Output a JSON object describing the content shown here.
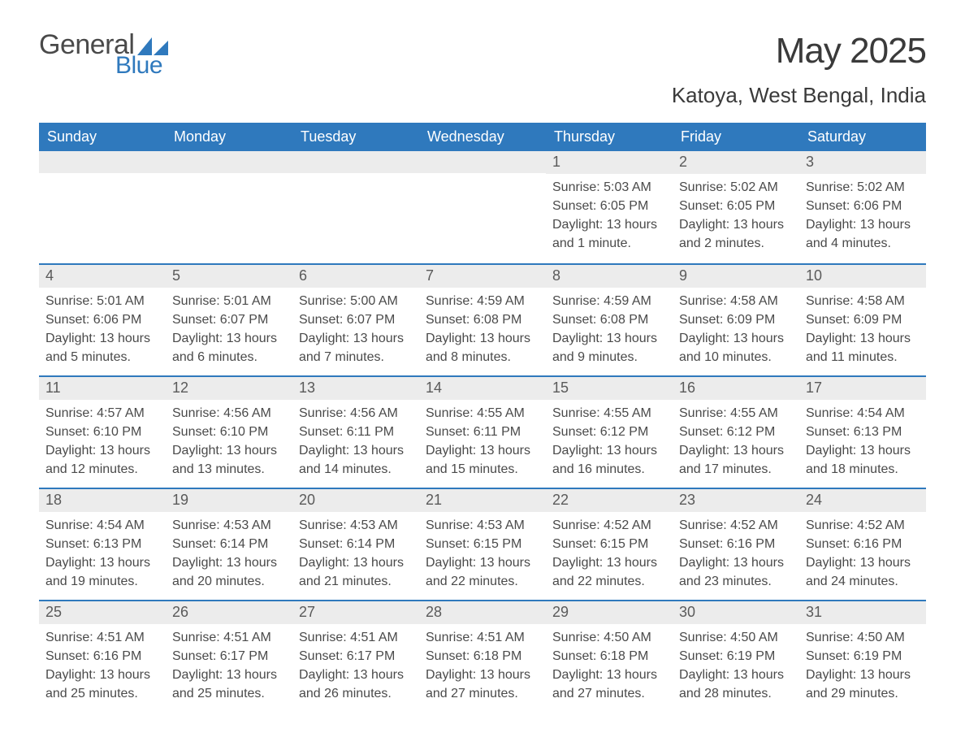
{
  "logo": {
    "text1": "General",
    "text2": "Blue",
    "shape_color": "#2f79bd"
  },
  "title": "May 2025",
  "location": "Katoya, West Bengal, India",
  "colors": {
    "header_bg": "#2f79bd",
    "header_text": "#ffffff",
    "daynum_bg": "#ececec",
    "daynum_text": "#5a5a5a",
    "body_text": "#4a4a4a",
    "rule": "#2f79bd",
    "page_bg": "#ffffff"
  },
  "typography": {
    "title_fontsize": 44,
    "location_fontsize": 26,
    "header_fontsize": 18,
    "daynum_fontsize": 18,
    "body_fontsize": 16,
    "font_family": "Arial"
  },
  "day_headers": [
    "Sunday",
    "Monday",
    "Tuesday",
    "Wednesday",
    "Thursday",
    "Friday",
    "Saturday"
  ],
  "weeks": [
    [
      {
        "blank": true
      },
      {
        "blank": true
      },
      {
        "blank": true
      },
      {
        "blank": true
      },
      {
        "n": "1",
        "sunrise": "Sunrise: 5:03 AM",
        "sunset": "Sunset: 6:05 PM",
        "day1": "Daylight: 13 hours",
        "day2": "and 1 minute."
      },
      {
        "n": "2",
        "sunrise": "Sunrise: 5:02 AM",
        "sunset": "Sunset: 6:05 PM",
        "day1": "Daylight: 13 hours",
        "day2": "and 2 minutes."
      },
      {
        "n": "3",
        "sunrise": "Sunrise: 5:02 AM",
        "sunset": "Sunset: 6:06 PM",
        "day1": "Daylight: 13 hours",
        "day2": "and 4 minutes."
      }
    ],
    [
      {
        "n": "4",
        "sunrise": "Sunrise: 5:01 AM",
        "sunset": "Sunset: 6:06 PM",
        "day1": "Daylight: 13 hours",
        "day2": "and 5 minutes."
      },
      {
        "n": "5",
        "sunrise": "Sunrise: 5:01 AM",
        "sunset": "Sunset: 6:07 PM",
        "day1": "Daylight: 13 hours",
        "day2": "and 6 minutes."
      },
      {
        "n": "6",
        "sunrise": "Sunrise: 5:00 AM",
        "sunset": "Sunset: 6:07 PM",
        "day1": "Daylight: 13 hours",
        "day2": "and 7 minutes."
      },
      {
        "n": "7",
        "sunrise": "Sunrise: 4:59 AM",
        "sunset": "Sunset: 6:08 PM",
        "day1": "Daylight: 13 hours",
        "day2": "and 8 minutes."
      },
      {
        "n": "8",
        "sunrise": "Sunrise: 4:59 AM",
        "sunset": "Sunset: 6:08 PM",
        "day1": "Daylight: 13 hours",
        "day2": "and 9 minutes."
      },
      {
        "n": "9",
        "sunrise": "Sunrise: 4:58 AM",
        "sunset": "Sunset: 6:09 PM",
        "day1": "Daylight: 13 hours",
        "day2": "and 10 minutes."
      },
      {
        "n": "10",
        "sunrise": "Sunrise: 4:58 AM",
        "sunset": "Sunset: 6:09 PM",
        "day1": "Daylight: 13 hours",
        "day2": "and 11 minutes."
      }
    ],
    [
      {
        "n": "11",
        "sunrise": "Sunrise: 4:57 AM",
        "sunset": "Sunset: 6:10 PM",
        "day1": "Daylight: 13 hours",
        "day2": "and 12 minutes."
      },
      {
        "n": "12",
        "sunrise": "Sunrise: 4:56 AM",
        "sunset": "Sunset: 6:10 PM",
        "day1": "Daylight: 13 hours",
        "day2": "and 13 minutes."
      },
      {
        "n": "13",
        "sunrise": "Sunrise: 4:56 AM",
        "sunset": "Sunset: 6:11 PM",
        "day1": "Daylight: 13 hours",
        "day2": "and 14 minutes."
      },
      {
        "n": "14",
        "sunrise": "Sunrise: 4:55 AM",
        "sunset": "Sunset: 6:11 PM",
        "day1": "Daylight: 13 hours",
        "day2": "and 15 minutes."
      },
      {
        "n": "15",
        "sunrise": "Sunrise: 4:55 AM",
        "sunset": "Sunset: 6:12 PM",
        "day1": "Daylight: 13 hours",
        "day2": "and 16 minutes."
      },
      {
        "n": "16",
        "sunrise": "Sunrise: 4:55 AM",
        "sunset": "Sunset: 6:12 PM",
        "day1": "Daylight: 13 hours",
        "day2": "and 17 minutes."
      },
      {
        "n": "17",
        "sunrise": "Sunrise: 4:54 AM",
        "sunset": "Sunset: 6:13 PM",
        "day1": "Daylight: 13 hours",
        "day2": "and 18 minutes."
      }
    ],
    [
      {
        "n": "18",
        "sunrise": "Sunrise: 4:54 AM",
        "sunset": "Sunset: 6:13 PM",
        "day1": "Daylight: 13 hours",
        "day2": "and 19 minutes."
      },
      {
        "n": "19",
        "sunrise": "Sunrise: 4:53 AM",
        "sunset": "Sunset: 6:14 PM",
        "day1": "Daylight: 13 hours",
        "day2": "and 20 minutes."
      },
      {
        "n": "20",
        "sunrise": "Sunrise: 4:53 AM",
        "sunset": "Sunset: 6:14 PM",
        "day1": "Daylight: 13 hours",
        "day2": "and 21 minutes."
      },
      {
        "n": "21",
        "sunrise": "Sunrise: 4:53 AM",
        "sunset": "Sunset: 6:15 PM",
        "day1": "Daylight: 13 hours",
        "day2": "and 22 minutes."
      },
      {
        "n": "22",
        "sunrise": "Sunrise: 4:52 AM",
        "sunset": "Sunset: 6:15 PM",
        "day1": "Daylight: 13 hours",
        "day2": "and 22 minutes."
      },
      {
        "n": "23",
        "sunrise": "Sunrise: 4:52 AM",
        "sunset": "Sunset: 6:16 PM",
        "day1": "Daylight: 13 hours",
        "day2": "and 23 minutes."
      },
      {
        "n": "24",
        "sunrise": "Sunrise: 4:52 AM",
        "sunset": "Sunset: 6:16 PM",
        "day1": "Daylight: 13 hours",
        "day2": "and 24 minutes."
      }
    ],
    [
      {
        "n": "25",
        "sunrise": "Sunrise: 4:51 AM",
        "sunset": "Sunset: 6:16 PM",
        "day1": "Daylight: 13 hours",
        "day2": "and 25 minutes."
      },
      {
        "n": "26",
        "sunrise": "Sunrise: 4:51 AM",
        "sunset": "Sunset: 6:17 PM",
        "day1": "Daylight: 13 hours",
        "day2": "and 25 minutes."
      },
      {
        "n": "27",
        "sunrise": "Sunrise: 4:51 AM",
        "sunset": "Sunset: 6:17 PM",
        "day1": "Daylight: 13 hours",
        "day2": "and 26 minutes."
      },
      {
        "n": "28",
        "sunrise": "Sunrise: 4:51 AM",
        "sunset": "Sunset: 6:18 PM",
        "day1": "Daylight: 13 hours",
        "day2": "and 27 minutes."
      },
      {
        "n": "29",
        "sunrise": "Sunrise: 4:50 AM",
        "sunset": "Sunset: 6:18 PM",
        "day1": "Daylight: 13 hours",
        "day2": "and 27 minutes."
      },
      {
        "n": "30",
        "sunrise": "Sunrise: 4:50 AM",
        "sunset": "Sunset: 6:19 PM",
        "day1": "Daylight: 13 hours",
        "day2": "and 28 minutes."
      },
      {
        "n": "31",
        "sunrise": "Sunrise: 4:50 AM",
        "sunset": "Sunset: 6:19 PM",
        "day1": "Daylight: 13 hours",
        "day2": "and 29 minutes."
      }
    ]
  ]
}
